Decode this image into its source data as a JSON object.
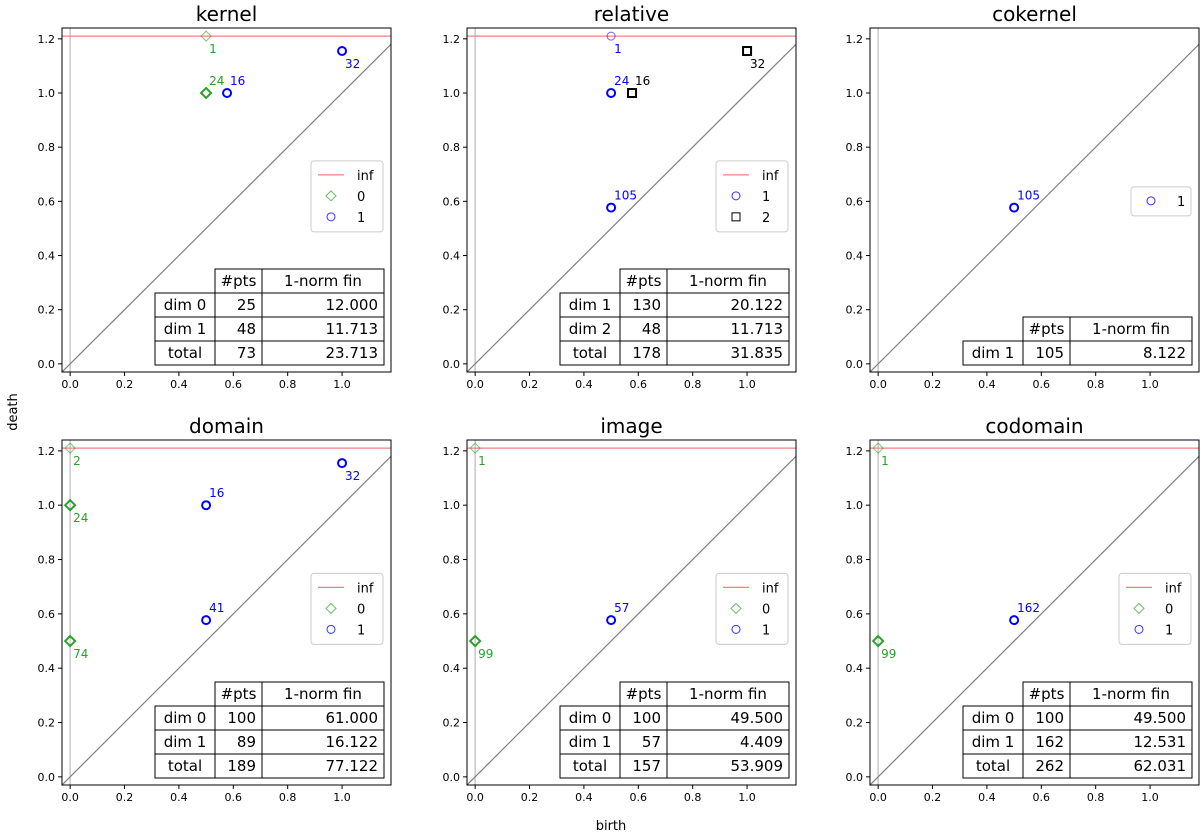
{
  "figure": {
    "xlabel": "birth",
    "ylabel": "death"
  },
  "chart_data": [
    {
      "type": "scatter",
      "title": "kernel",
      "xlim": [
        -0.03,
        1.18
      ],
      "ylim": [
        -0.03,
        1.24
      ],
      "xticks": [
        "0.0",
        "0.2",
        "0.4",
        "0.6",
        "0.8",
        "1.0"
      ],
      "yticks": [
        "0.0",
        "0.2",
        "0.4",
        "0.6",
        "0.8",
        "1.0",
        "1.2"
      ],
      "inf_line": 1.21,
      "diagonal": true,
      "series": [
        {
          "name": "0",
          "marker": "diamond",
          "color": "#2ca02c",
          "points": [
            {
              "x": 0.5,
              "y": 1.21,
              "label": "1",
              "faint": true
            },
            {
              "x": 0.5,
              "y": 1.0,
              "label": "24"
            }
          ]
        },
        {
          "name": "1",
          "marker": "circle",
          "color": "#0000ff",
          "points": [
            {
              "x": 0.577,
              "y": 1.0,
              "label": "16"
            },
            {
              "x": 1.0,
              "y": 1.155,
              "label": "32"
            }
          ]
        }
      ],
      "legend": {
        "position": "right",
        "entries": [
          "inf",
          "0",
          "1"
        ]
      },
      "table": {
        "headers": [
          "",
          "#pts",
          "1-norm fin"
        ],
        "rows": [
          [
            "dim 0",
            "25",
            "12.000"
          ],
          [
            "dim 1",
            "48",
            "11.713"
          ],
          [
            "total",
            "73",
            "23.713"
          ]
        ]
      }
    },
    {
      "type": "scatter",
      "title": "relative",
      "xlim": [
        -0.03,
        1.18
      ],
      "ylim": [
        -0.03,
        1.24
      ],
      "xticks": [
        "0.0",
        "0.2",
        "0.4",
        "0.6",
        "0.8",
        "1.0"
      ],
      "yticks": [
        "0.0",
        "0.2",
        "0.4",
        "0.6",
        "0.8",
        "1.0",
        "1.2"
      ],
      "inf_line": 1.21,
      "diagonal": true,
      "series": [
        {
          "name": "1",
          "marker": "circle",
          "color": "#0000ff",
          "points": [
            {
              "x": 0.5,
              "y": 1.21,
              "label": "1",
              "faint": true
            },
            {
              "x": 0.5,
              "y": 1.0,
              "label": "24"
            },
            {
              "x": 0.5,
              "y": 0.577,
              "label": "105"
            }
          ]
        },
        {
          "name": "2",
          "marker": "square",
          "color": "#000000",
          "points": [
            {
              "x": 0.577,
              "y": 1.0,
              "label": "16"
            },
            {
              "x": 1.0,
              "y": 1.155,
              "label": "32"
            }
          ]
        }
      ],
      "legend": {
        "position": "right",
        "entries": [
          "inf",
          "1",
          "2"
        ]
      },
      "table": {
        "headers": [
          "",
          "#pts",
          "1-norm fin"
        ],
        "rows": [
          [
            "dim 1",
            "130",
            "20.122"
          ],
          [
            "dim 2",
            "48",
            "11.713"
          ],
          [
            "total",
            "178",
            "31.835"
          ]
        ]
      }
    },
    {
      "type": "scatter",
      "title": "cokernel",
      "xlim": [
        -0.03,
        1.18
      ],
      "ylim": [
        -0.03,
        1.24
      ],
      "xticks": [
        "0.0",
        "0.2",
        "0.4",
        "0.6",
        "0.8",
        "1.0"
      ],
      "yticks": [
        "0.0",
        "0.2",
        "0.4",
        "0.6",
        "0.8",
        "1.0",
        "1.2"
      ],
      "inf_line": null,
      "diagonal": true,
      "series": [
        {
          "name": "1",
          "marker": "circle",
          "color": "#0000ff",
          "points": [
            {
              "x": 0.5,
              "y": 0.577,
              "label": "105"
            }
          ]
        }
      ],
      "legend": {
        "position": "right",
        "entries": [
          "1"
        ]
      },
      "table": {
        "headers": [
          "",
          "#pts",
          "1-norm fin"
        ],
        "rows": [
          [
            "dim 1",
            "105",
            "8.122"
          ]
        ]
      }
    },
    {
      "type": "scatter",
      "title": "domain",
      "xlim": [
        -0.03,
        1.18
      ],
      "ylim": [
        -0.03,
        1.24
      ],
      "xticks": [
        "0.0",
        "0.2",
        "0.4",
        "0.6",
        "0.8",
        "1.0"
      ],
      "yticks": [
        "0.0",
        "0.2",
        "0.4",
        "0.6",
        "0.8",
        "1.0",
        "1.2"
      ],
      "inf_line": 1.21,
      "diagonal": true,
      "series": [
        {
          "name": "0",
          "marker": "diamond",
          "color": "#2ca02c",
          "points": [
            {
              "x": 0.0,
              "y": 1.21,
              "label": "2",
              "faint": true
            },
            {
              "x": 0.0,
              "y": 1.0,
              "label": "24"
            },
            {
              "x": 0.0,
              "y": 0.5,
              "label": "74"
            }
          ]
        },
        {
          "name": "1",
          "marker": "circle",
          "color": "#0000ff",
          "points": [
            {
              "x": 0.5,
              "y": 1.0,
              "label": "16"
            },
            {
              "x": 1.0,
              "y": 1.155,
              "label": "32"
            },
            {
              "x": 0.5,
              "y": 0.577,
              "label": "41"
            }
          ]
        }
      ],
      "legend": {
        "position": "right",
        "entries": [
          "inf",
          "0",
          "1"
        ]
      },
      "table": {
        "headers": [
          "",
          "#pts",
          "1-norm fin"
        ],
        "rows": [
          [
            "dim 0",
            "100",
            "61.000"
          ],
          [
            "dim 1",
            "89",
            "16.122"
          ],
          [
            "total",
            "189",
            "77.122"
          ]
        ]
      }
    },
    {
      "type": "scatter",
      "title": "image",
      "xlim": [
        -0.03,
        1.18
      ],
      "ylim": [
        -0.03,
        1.24
      ],
      "xticks": [
        "0.0",
        "0.2",
        "0.4",
        "0.6",
        "0.8",
        "1.0"
      ],
      "yticks": [
        "0.0",
        "0.2",
        "0.4",
        "0.6",
        "0.8",
        "1.0",
        "1.2"
      ],
      "inf_line": 1.21,
      "diagonal": true,
      "series": [
        {
          "name": "0",
          "marker": "diamond",
          "color": "#2ca02c",
          "points": [
            {
              "x": 0.0,
              "y": 1.21,
              "label": "1",
              "faint": true
            },
            {
              "x": 0.0,
              "y": 0.5,
              "label": "99"
            }
          ]
        },
        {
          "name": "1",
          "marker": "circle",
          "color": "#0000ff",
          "points": [
            {
              "x": 0.5,
              "y": 0.577,
              "label": "57"
            }
          ]
        }
      ],
      "legend": {
        "position": "right",
        "entries": [
          "inf",
          "0",
          "1"
        ]
      },
      "table": {
        "headers": [
          "",
          "#pts",
          "1-norm fin"
        ],
        "rows": [
          [
            "dim 0",
            "100",
            "49.500"
          ],
          [
            "dim 1",
            "57",
            "4.409"
          ],
          [
            "total",
            "157",
            "53.909"
          ]
        ]
      }
    },
    {
      "type": "scatter",
      "title": "codomain",
      "xlim": [
        -0.03,
        1.18
      ],
      "ylim": [
        -0.03,
        1.24
      ],
      "xticks": [
        "0.0",
        "0.2",
        "0.4",
        "0.6",
        "0.8",
        "1.0"
      ],
      "yticks": [
        "0.0",
        "0.2",
        "0.4",
        "0.6",
        "0.8",
        "1.0",
        "1.2"
      ],
      "inf_line": 1.21,
      "diagonal": true,
      "series": [
        {
          "name": "0",
          "marker": "diamond",
          "color": "#2ca02c",
          "points": [
            {
              "x": 0.0,
              "y": 1.21,
              "label": "1",
              "faint": true
            },
            {
              "x": 0.0,
              "y": 0.5,
              "label": "99"
            }
          ]
        },
        {
          "name": "1",
          "marker": "circle",
          "color": "#0000ff",
          "points": [
            {
              "x": 0.5,
              "y": 0.577,
              "label": "162"
            }
          ]
        }
      ],
      "legend": {
        "position": "right",
        "entries": [
          "inf",
          "0",
          "1"
        ]
      },
      "table": {
        "headers": [
          "",
          "#pts",
          "1-norm fin"
        ],
        "rows": [
          [
            "dim 0",
            "100",
            "49.500"
          ],
          [
            "dim 1",
            "162",
            "12.531"
          ],
          [
            "total",
            "262",
            "62.031"
          ]
        ]
      }
    }
  ]
}
